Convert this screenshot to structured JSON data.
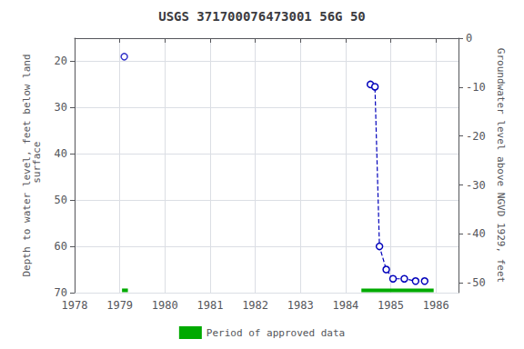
{
  "chart_data": {
    "type": "line",
    "title": "USGS 371700076473001 56G 50",
    "ylabel": "Depth to water level, feet below land\n surface",
    "y2label": "Groundwater level above NGVD 1929, feet",
    "xlim": [
      1978,
      1986.5
    ],
    "xticks": [
      1978,
      1979,
      1980,
      1981,
      1982,
      1983,
      1984,
      1985,
      1986
    ],
    "ylim": [
      70,
      15
    ],
    "yticks": [
      20,
      30,
      40,
      50,
      60,
      70
    ],
    "y2lim": [
      -52,
      0
    ],
    "y2ticks": [
      0,
      -10,
      -20,
      -30,
      -40,
      -50
    ],
    "grid": true,
    "legend": "bottom",
    "series": [
      {
        "type": "scatter",
        "marker": "circle",
        "color": "#0000bb",
        "x": [
          1979.1
        ],
        "values": [
          19
        ]
      },
      {
        "type": "line",
        "line_style": "dashed",
        "marker": "circle",
        "color": "#0000bb",
        "x": [
          1984.55,
          1984.65,
          1984.75,
          1984.9,
          1985.05,
          1985.3,
          1985.55,
          1985.75
        ],
        "values": [
          25,
          25.5,
          60,
          65,
          67,
          67,
          67.5,
          67.5
        ]
      },
      {
        "type": "bar",
        "orientation": "horizontal",
        "name": "Period of approved data",
        "color": "#00aa00",
        "y": 69.5,
        "segments": [
          [
            1979.05,
            1979.18
          ],
          [
            1984.35,
            1985.95
          ]
        ]
      }
    ]
  }
}
